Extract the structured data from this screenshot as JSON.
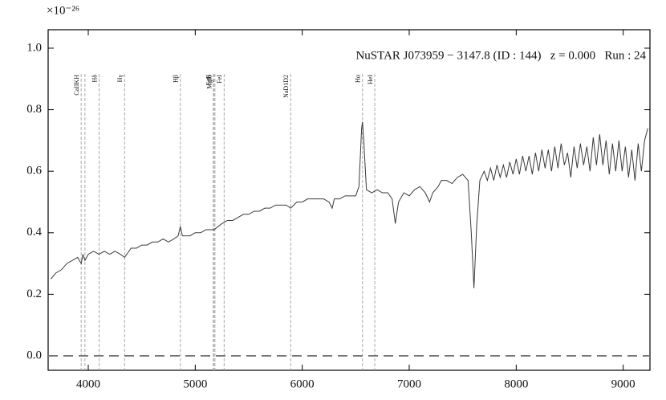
{
  "chart_data": {
    "type": "line",
    "title": "NuSTAR J073959 − 3147.8 (ID : 144)   z = 0.000   Run : 24",
    "y_offset_label": "×10⁻²⁶",
    "x": [
      3650,
      3700,
      3750,
      3800,
      3850,
      3900,
      3934,
      3950,
      3969,
      4000,
      4050,
      4100,
      4150,
      4200,
      4250,
      4300,
      4340,
      4400,
      4450,
      4500,
      4550,
      4600,
      4650,
      4700,
      4750,
      4800,
      4840,
      4861,
      4880,
      4950,
      5000,
      5050,
      5100,
      5175,
      5250,
      5300,
      5350,
      5400,
      5450,
      5500,
      5550,
      5600,
      5650,
      5700,
      5750,
      5800,
      5850,
      5892,
      5950,
      6000,
      6050,
      6100,
      6150,
      6200,
      6250,
      6280,
      6300,
      6350,
      6400,
      6450,
      6500,
      6530,
      6555,
      6563,
      6575,
      6600,
      6650,
      6700,
      6750,
      6800,
      6840,
      6870,
      6900,
      6950,
      7000,
      7050,
      7100,
      7150,
      7190,
      7220,
      7270,
      7300,
      7350,
      7400,
      7450,
      7500,
      7550,
      7580,
      7605,
      7630,
      7660,
      7700,
      7730,
      7760,
      7790,
      7820,
      7850,
      7880,
      7910,
      7940,
      7970,
      8000,
      8030,
      8060,
      8090,
      8120,
      8150,
      8180,
      8210,
      8240,
      8270,
      8300,
      8330,
      8360,
      8390,
      8420,
      8450,
      8480,
      8510,
      8540,
      8570,
      8600,
      8630,
      8660,
      8690,
      8720,
      8750,
      8780,
      8810,
      8840,
      8870,
      8900,
      8930,
      8960,
      8990,
      9020,
      9050,
      9080,
      9110,
      9140,
      9170,
      9200,
      9230
    ],
    "series": [
      {
        "color": "#3a3a3a",
        "values": [
          0.25,
          0.27,
          0.28,
          0.3,
          0.31,
          0.32,
          0.3,
          0.33,
          0.31,
          0.33,
          0.34,
          0.33,
          0.34,
          0.33,
          0.34,
          0.33,
          0.32,
          0.35,
          0.35,
          0.36,
          0.36,
          0.37,
          0.37,
          0.38,
          0.37,
          0.38,
          0.39,
          0.42,
          0.39,
          0.39,
          0.4,
          0.4,
          0.41,
          0.41,
          0.43,
          0.44,
          0.44,
          0.45,
          0.46,
          0.46,
          0.47,
          0.47,
          0.48,
          0.48,
          0.49,
          0.49,
          0.49,
          0.48,
          0.5,
          0.5,
          0.51,
          0.51,
          0.51,
          0.51,
          0.5,
          0.48,
          0.51,
          0.51,
          0.52,
          0.52,
          0.52,
          0.55,
          0.74,
          0.76,
          0.7,
          0.54,
          0.53,
          0.54,
          0.53,
          0.53,
          0.51,
          0.43,
          0.5,
          0.53,
          0.52,
          0.54,
          0.55,
          0.53,
          0.5,
          0.53,
          0.55,
          0.57,
          0.57,
          0.56,
          0.58,
          0.59,
          0.57,
          0.4,
          0.22,
          0.42,
          0.57,
          0.6,
          0.57,
          0.61,
          0.57,
          0.62,
          0.58,
          0.62,
          0.58,
          0.63,
          0.59,
          0.64,
          0.59,
          0.65,
          0.6,
          0.65,
          0.59,
          0.66,
          0.6,
          0.67,
          0.61,
          0.67,
          0.6,
          0.68,
          0.61,
          0.69,
          0.62,
          0.66,
          0.58,
          0.68,
          0.61,
          0.69,
          0.62,
          0.68,
          0.6,
          0.71,
          0.62,
          0.72,
          0.62,
          0.7,
          0.59,
          0.69,
          0.6,
          0.7,
          0.6,
          0.68,
          0.58,
          0.67,
          0.57,
          0.69,
          0.6,
          0.7,
          0.74
        ]
      }
    ],
    "spectral_lines": [
      {
        "label": "CaIIKH",
        "wavelengths": [
          3934,
          3969
        ]
      },
      {
        "label": "Hδ",
        "wavelengths": [
          4102
        ]
      },
      {
        "label": "Hγ",
        "wavelengths": [
          4340
        ]
      },
      {
        "label": "Hβ",
        "wavelengths": [
          4861
        ]
      },
      {
        "label": "FeII",
        "wavelengths": [
          5169
        ]
      },
      {
        "label": "MgIb",
        "wavelengths": [
          5175,
          5184
        ]
      },
      {
        "label": "FeI",
        "wavelengths": [
          5270
        ]
      },
      {
        "label": "NaD1D2",
        "wavelengths": [
          5892
        ]
      },
      {
        "label": "Hα",
        "wavelengths": [
          6563
        ]
      },
      {
        "label": "HeI",
        "wavelengths": [
          6678
        ]
      }
    ],
    "reference_line": 0,
    "xlim": [
      3625,
      9250
    ],
    "ylim": [
      -0.047,
      1.06
    ],
    "xticks": [
      4000,
      5000,
      6000,
      7000,
      8000,
      9000
    ],
    "yticks": [
      {
        "value": 0,
        "label": "0.0"
      },
      0.2,
      0.4,
      0.6,
      0.8,
      {
        "value": 1,
        "label": "1.0"
      }
    ]
  }
}
